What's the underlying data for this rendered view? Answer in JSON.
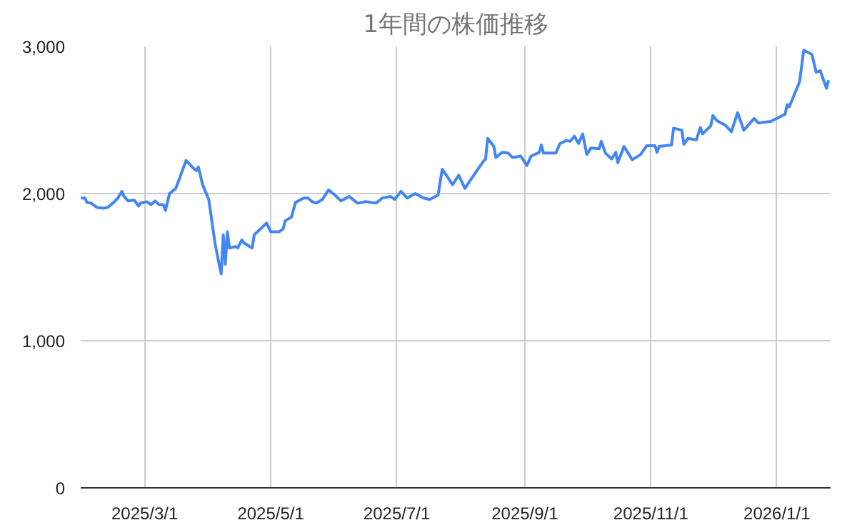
{
  "chart_data": {
    "type": "line",
    "title": "1年間の株価推移",
    "grid": true,
    "line_style": "solid",
    "xlim": [
      "2025-01-29",
      "2026-01-27"
    ],
    "xticks": [
      {
        "value": "2025-03-01",
        "label": "2025/3/1"
      },
      {
        "value": "2025-05-01",
        "label": "2025/5/1"
      },
      {
        "value": "2025-07-01",
        "label": "2025/7/1"
      },
      {
        "value": "2025-09-01",
        "label": "2025/9/1"
      },
      {
        "value": "2025-11-01",
        "label": "2025/11/1"
      },
      {
        "value": "2026-01-01",
        "label": "2026/1/1"
      }
    ],
    "ylim": [
      0,
      3000
    ],
    "yticks": [
      {
        "value": 0,
        "label": "0"
      },
      {
        "value": 1000,
        "label": "1,000"
      },
      {
        "value": 2000,
        "label": "2,000"
      },
      {
        "value": 3000,
        "label": "3,000"
      }
    ],
    "x": [
      "2025-01-29",
      "2025-01-31",
      "2025-02-01",
      "2025-02-03",
      "2025-02-06",
      "2025-02-09",
      "2025-02-11",
      "2025-02-14",
      "2025-02-16",
      "2025-02-18",
      "2025-02-19",
      "2025-02-21",
      "2025-02-24",
      "2025-02-26",
      "2025-02-27",
      "2025-03-02",
      "2025-03-04",
      "2025-03-06",
      "2025-03-08",
      "2025-03-10",
      "2025-03-11",
      "2025-03-13",
      "2025-03-16",
      "2025-03-18",
      "2025-03-21",
      "2025-03-24",
      "2025-03-26",
      "2025-03-27",
      "2025-03-29",
      "2025-04-01",
      "2025-04-04",
      "2025-04-06",
      "2025-04-07",
      "2025-04-08",
      "2025-04-09",
      "2025-04-10",
      "2025-04-11",
      "2025-04-14",
      "2025-04-15",
      "2025-04-17",
      "2025-04-18",
      "2025-04-22",
      "2025-04-23",
      "2025-04-29",
      "2025-05-01",
      "2025-05-05",
      "2025-05-07",
      "2025-05-08",
      "2025-05-11",
      "2025-05-13",
      "2025-05-17",
      "2025-05-19",
      "2025-05-21",
      "2025-05-23",
      "2025-05-26",
      "2025-05-29",
      "2025-06-01",
      "2025-06-04",
      "2025-06-08",
      "2025-06-12",
      "2025-06-16",
      "2025-06-21",
      "2025-06-24",
      "2025-06-28",
      "2025-06-30",
      "2025-07-03",
      "2025-07-06",
      "2025-07-10",
      "2025-07-14",
      "2025-07-17",
      "2025-07-21",
      "2025-07-23",
      "2025-07-25",
      "2025-07-28",
      "2025-07-31",
      "2025-08-03",
      "2025-08-07",
      "2025-08-12",
      "2025-08-13",
      "2025-08-14",
      "2025-08-17",
      "2025-08-18",
      "2025-08-21",
      "2025-08-24",
      "2025-08-26",
      "2025-08-30",
      "2025-09-02",
      "2025-09-04",
      "2025-09-08",
      "2025-09-09",
      "2025-09-10",
      "2025-09-16",
      "2025-09-18",
      "2025-09-21",
      "2025-09-23",
      "2025-09-25",
      "2025-09-27",
      "2025-09-29",
      "2025-10-01",
      "2025-10-03",
      "2025-10-07",
      "2025-10-08",
      "2025-10-10",
      "2025-10-13",
      "2025-10-15",
      "2025-10-16",
      "2025-10-19",
      "2025-10-23",
      "2025-10-27",
      "2025-10-30",
      "2025-11-03",
      "2025-11-04",
      "2025-11-05",
      "2025-11-11",
      "2025-11-12",
      "2025-11-16",
      "2025-11-17",
      "2025-11-19",
      "2025-11-23",
      "2025-11-25",
      "2025-11-26",
      "2025-11-30",
      "2025-12-01",
      "2025-12-03",
      "2025-12-07",
      "2025-12-10",
      "2025-12-13",
      "2025-12-16",
      "2025-12-21",
      "2025-12-23",
      "2025-12-29",
      "2026-01-03",
      "2026-01-05",
      "2026-01-06",
      "2026-01-07",
      "2026-01-12",
      "2026-01-14",
      "2026-01-18",
      "2026-01-20",
      "2026-01-22",
      "2026-01-25",
      "2026-01-26"
    ],
    "series": [
      {
        "color": "#4285f4",
        "values": [
          1970,
          1970,
          1940,
          1935,
          1905,
          1900,
          1905,
          1940,
          1970,
          2015,
          1980,
          1950,
          1955,
          1915,
          1935,
          1945,
          1925,
          1950,
          1925,
          1925,
          1885,
          2000,
          2035,
          2110,
          2225,
          2180,
          2155,
          2180,
          2060,
          1960,
          1665,
          1520,
          1455,
          1720,
          1520,
          1740,
          1630,
          1640,
          1630,
          1685,
          1665,
          1630,
          1720,
          1800,
          1740,
          1740,
          1760,
          1815,
          1840,
          1940,
          1970,
          1970,
          1945,
          1935,
          1960,
          2025,
          1990,
          1950,
          1980,
          1935,
          1945,
          1935,
          1970,
          1980,
          1960,
          2015,
          1970,
          2000,
          1970,
          1960,
          1990,
          2165,
          2125,
          2060,
          2125,
          2035,
          2120,
          2220,
          2235,
          2375,
          2320,
          2245,
          2280,
          2275,
          2245,
          2255,
          2190,
          2255,
          2280,
          2330,
          2275,
          2275,
          2340,
          2360,
          2355,
          2390,
          2340,
          2405,
          2265,
          2310,
          2305,
          2355,
          2275,
          2235,
          2280,
          2210,
          2320,
          2230,
          2265,
          2325,
          2325,
          2280,
          2320,
          2330,
          2445,
          2430,
          2335,
          2375,
          2365,
          2450,
          2405,
          2460,
          2530,
          2495,
          2465,
          2420,
          2550,
          2430,
          2510,
          2480,
          2490,
          2525,
          2540,
          2605,
          2590,
          2760,
          2975,
          2945,
          2825,
          2835,
          2715,
          2770
        ]
      }
    ]
  }
}
